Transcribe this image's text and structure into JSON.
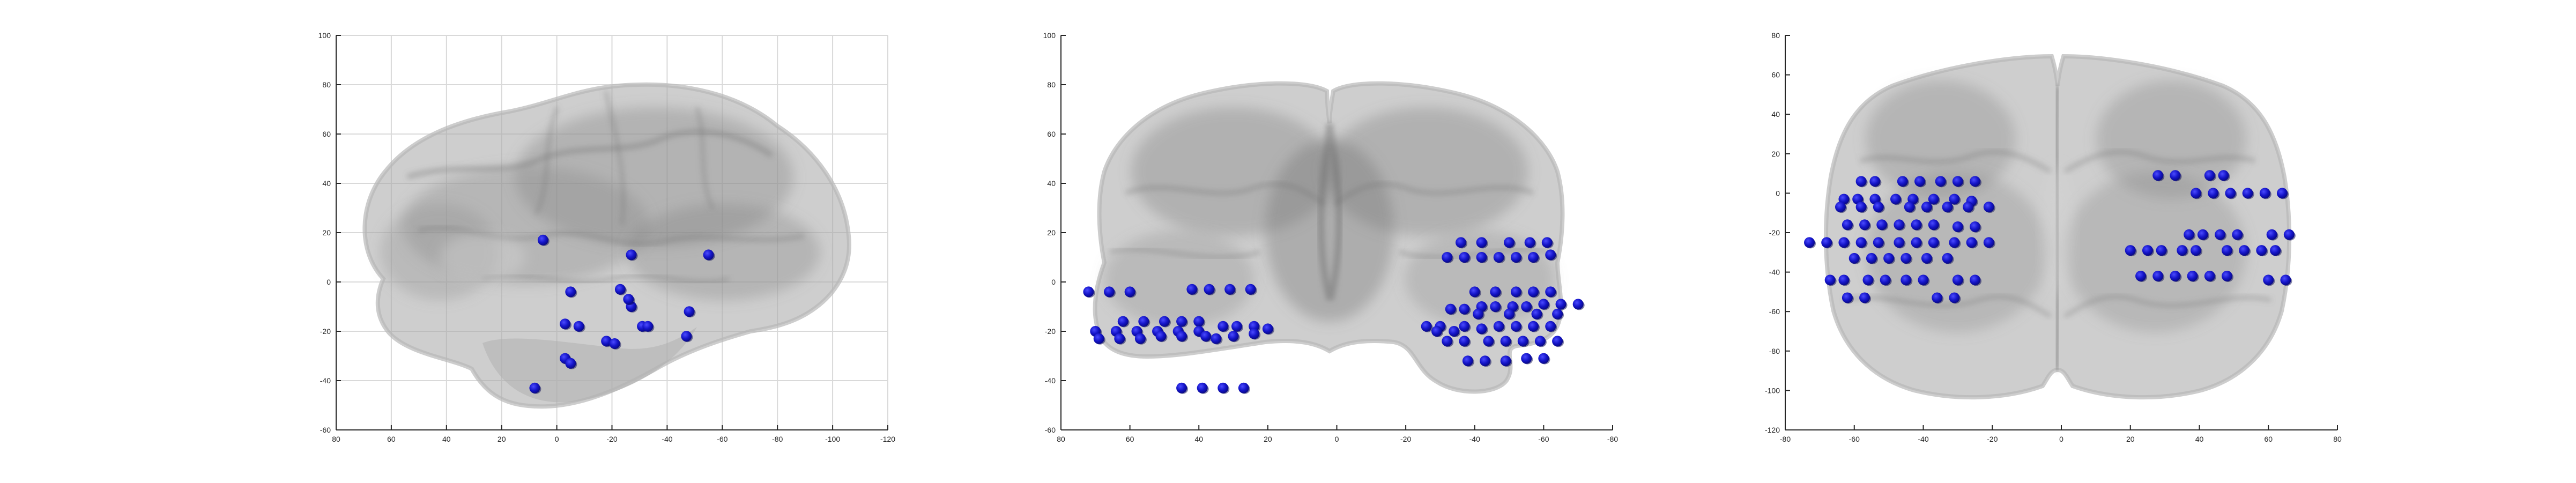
{
  "colors": {
    "electrode": "#1414c8",
    "electrode_highlight": "#4b4bff",
    "brain_fill": "#a8a8a8",
    "brain_shade": "#8e8e8e",
    "brain_edge": "#bdbdbd",
    "grid": "#d9d9d9",
    "axis": "#262626",
    "background": "#ffffff"
  },
  "chart_data": [
    {
      "type": "scatter",
      "view": "sagittal",
      "title": "",
      "xlabel": "",
      "ylabel": "",
      "grid": true,
      "xlim": [
        80,
        -120
      ],
      "ylim": [
        -60,
        100
      ],
      "x_ticks": [
        80,
        60,
        40,
        20,
        0,
        -20,
        -40,
        -60,
        -80,
        -100,
        -120
      ],
      "y_ticks": [
        -60,
        -40,
        -20,
        0,
        20,
        40,
        60,
        80,
        100
      ],
      "x_tick_labels": [
        "80",
        "60",
        "40",
        "20",
        "0",
        "-20",
        "-40",
        "-60",
        "-80",
        "-100",
        "-120"
      ],
      "y_tick_labels": [
        "-60",
        "-40",
        "-20",
        "0",
        "20",
        "40",
        "60",
        "80",
        "100"
      ],
      "points": [
        [
          5,
          17
        ],
        [
          -55,
          11
        ],
        [
          -27,
          11
        ],
        [
          -5,
          -4
        ],
        [
          -23,
          -3
        ],
        [
          -27,
          -10
        ],
        [
          -48,
          -12
        ],
        [
          -3,
          -17
        ],
        [
          -8,
          -18
        ],
        [
          -31,
          -18
        ],
        [
          -47,
          -22
        ],
        [
          -18,
          -24
        ],
        [
          -21,
          -25
        ],
        [
          -3,
          -31
        ],
        [
          -5,
          -33
        ],
        [
          8,
          -43
        ],
        [
          -26,
          -7
        ],
        [
          -33,
          -18
        ]
      ]
    },
    {
      "type": "scatter",
      "view": "coronal",
      "title": "",
      "xlabel": "",
      "ylabel": "",
      "grid": false,
      "xlim": [
        80,
        -80
      ],
      "ylim": [
        -60,
        100
      ],
      "x_ticks": [
        80,
        60,
        40,
        20,
        0,
        -20,
        -40,
        -60,
        -80
      ],
      "y_ticks": [
        -60,
        -40,
        -20,
        0,
        20,
        40,
        60,
        80,
        100
      ],
      "x_tick_labels": [
        "80",
        "60",
        "40",
        "20",
        "0",
        "-20",
        "-40",
        "-60",
        "-80"
      ],
      "y_tick_labels": [
        "-60",
        "-40",
        "-20",
        "0",
        "20",
        "40",
        "60",
        "80",
        "100"
      ],
      "points": [
        [
          -36,
          16
        ],
        [
          -42,
          16
        ],
        [
          -50,
          16
        ],
        [
          -56,
          16
        ],
        [
          -61,
          16
        ],
        [
          -32,
          10
        ],
        [
          -37,
          10
        ],
        [
          -42,
          10
        ],
        [
          -47,
          10
        ],
        [
          -52,
          10
        ],
        [
          -57,
          10
        ],
        [
          -62,
          11
        ],
        [
          -40,
          -4
        ],
        [
          -46,
          -4
        ],
        [
          -52,
          -4
        ],
        [
          -57,
          -4
        ],
        [
          -62,
          -4
        ],
        [
          -33,
          -11
        ],
        [
          -37,
          -11
        ],
        [
          -42,
          -10
        ],
        [
          -46,
          -10
        ],
        [
          -51,
          -10
        ],
        [
          -55,
          -10
        ],
        [
          -60,
          -9
        ],
        [
          -65,
          -9
        ],
        [
          -70,
          -9
        ],
        [
          -41,
          -13
        ],
        [
          -50,
          -13
        ],
        [
          -58,
          -13
        ],
        [
          -64,
          -13
        ],
        [
          -26,
          -18
        ],
        [
          -30,
          -18
        ],
        [
          -37,
          -18
        ],
        [
          -42,
          -19
        ],
        [
          -47,
          -18
        ],
        [
          -52,
          -18
        ],
        [
          -57,
          -18
        ],
        [
          -62,
          -18
        ],
        [
          -32,
          -24
        ],
        [
          -37,
          -24
        ],
        [
          -44,
          -24
        ],
        [
          -49,
          -24
        ],
        [
          -54,
          -24
        ],
        [
          -59,
          -24
        ],
        [
          -64,
          -24
        ],
        [
          -38,
          -32
        ],
        [
          -43,
          -32
        ],
        [
          -49,
          -32
        ],
        [
          -55,
          -31
        ],
        [
          -60,
          -31
        ],
        [
          -29,
          -20
        ],
        [
          -34,
          -20
        ],
        [
          72,
          -4
        ],
        [
          66,
          -4
        ],
        [
          60,
          -4
        ],
        [
          42,
          -3
        ],
        [
          37,
          -3
        ],
        [
          31,
          -3
        ],
        [
          25,
          -3
        ],
        [
          62,
          -16
        ],
        [
          56,
          -16
        ],
        [
          50,
          -16
        ],
        [
          45,
          -16
        ],
        [
          40,
          -16
        ],
        [
          70,
          -20
        ],
        [
          64,
          -20
        ],
        [
          58,
          -20
        ],
        [
          52,
          -20
        ],
        [
          46,
          -20
        ],
        [
          40,
          -20
        ],
        [
          69,
          -23
        ],
        [
          63,
          -23
        ],
        [
          57,
          -23
        ],
        [
          51,
          -22
        ],
        [
          45,
          -22
        ],
        [
          38,
          -22
        ],
        [
          33,
          -18
        ],
        [
          29,
          -18
        ],
        [
          24,
          -18
        ],
        [
          20,
          -19
        ],
        [
          35,
          -23
        ],
        [
          30,
          -22
        ],
        [
          24,
          -21
        ],
        [
          45,
          -43
        ],
        [
          39,
          -43
        ],
        [
          33,
          -43
        ],
        [
          27,
          -43
        ]
      ]
    },
    {
      "type": "scatter",
      "view": "axial",
      "title": "",
      "xlabel": "",
      "ylabel": "",
      "grid": false,
      "xlim": [
        -80,
        80
      ],
      "ylim": [
        -120,
        80
      ],
      "x_ticks": [
        -80,
        -60,
        -40,
        -20,
        0,
        20,
        40,
        60,
        80
      ],
      "y_ticks": [
        -120,
        -100,
        -80,
        -60,
        -40,
        -20,
        0,
        20,
        40,
        60,
        80
      ],
      "x_tick_labels": [
        "-80",
        "-60",
        "-40",
        "-20",
        "0",
        "20",
        "40",
        "60",
        "80"
      ],
      "y_tick_labels": [
        "-120",
        "-100",
        "-80",
        "-60",
        "-40",
        "-20",
        "0",
        "20",
        "40",
        "60",
        "80"
      ],
      "points": [
        [
          -58,
          6
        ],
        [
          -54,
          6
        ],
        [
          -46,
          6
        ],
        [
          -41,
          6
        ],
        [
          -35,
          6
        ],
        [
          -30,
          6
        ],
        [
          -25,
          6
        ],
        [
          -63,
          -3
        ],
        [
          -59,
          -3
        ],
        [
          -54,
          -3
        ],
        [
          -48,
          -3
        ],
        [
          -43,
          -3
        ],
        [
          -37,
          -3
        ],
        [
          -31,
          -3
        ],
        [
          -26,
          -4
        ],
        [
          -64,
          -7
        ],
        [
          -58,
          -7
        ],
        [
          -53,
          -7
        ],
        [
          -44,
          -7
        ],
        [
          -39,
          -7
        ],
        [
          -33,
          -7
        ],
        [
          -27,
          -7
        ],
        [
          -21,
          -7
        ],
        [
          -62,
          -16
        ],
        [
          -57,
          -16
        ],
        [
          -52,
          -16
        ],
        [
          -47,
          -16
        ],
        [
          -42,
          -16
        ],
        [
          -37,
          -16
        ],
        [
          -30,
          -17
        ],
        [
          -25,
          -17
        ],
        [
          -73,
          -25
        ],
        [
          -68,
          -25
        ],
        [
          -63,
          -25
        ],
        [
          -58,
          -25
        ],
        [
          -53,
          -25
        ],
        [
          -47,
          -25
        ],
        [
          -42,
          -25
        ],
        [
          -37,
          -25
        ],
        [
          -31,
          -25
        ],
        [
          -26,
          -25
        ],
        [
          -21,
          -25
        ],
        [
          -60,
          -33
        ],
        [
          -55,
          -33
        ],
        [
          -50,
          -33
        ],
        [
          -45,
          -33
        ],
        [
          -39,
          -33
        ],
        [
          -33,
          -33
        ],
        [
          -67,
          -44
        ],
        [
          -63,
          -44
        ],
        [
          -56,
          -44
        ],
        [
          -51,
          -44
        ],
        [
          -45,
          -44
        ],
        [
          -40,
          -44
        ],
        [
          -30,
          -44
        ],
        [
          -25,
          -44
        ],
        [
          -62,
          -53
        ],
        [
          -57,
          -53
        ],
        [
          -36,
          -53
        ],
        [
          -31,
          -53
        ],
        [
          28,
          9
        ],
        [
          33,
          9
        ],
        [
          43,
          9
        ],
        [
          47,
          9
        ],
        [
          39,
          0
        ],
        [
          44,
          0
        ],
        [
          49,
          0
        ],
        [
          54,
          0
        ],
        [
          59,
          0
        ],
        [
          64,
          0
        ],
        [
          37,
          -21
        ],
        [
          41,
          -21
        ],
        [
          46,
          -21
        ],
        [
          51,
          -21
        ],
        [
          61,
          -21
        ],
        [
          66,
          -21
        ],
        [
          20,
          -29
        ],
        [
          25,
          -29
        ],
        [
          29,
          -29
        ],
        [
          35,
          -29
        ],
        [
          39,
          -29
        ],
        [
          48,
          -29
        ],
        [
          53,
          -29
        ],
        [
          58,
          -29
        ],
        [
          62,
          -29
        ],
        [
          23,
          -42
        ],
        [
          28,
          -42
        ],
        [
          33,
          -42
        ],
        [
          38,
          -42
        ],
        [
          43,
          -42
        ],
        [
          48,
          -42
        ],
        [
          60,
          -44
        ],
        [
          65,
          -44
        ]
      ]
    }
  ]
}
